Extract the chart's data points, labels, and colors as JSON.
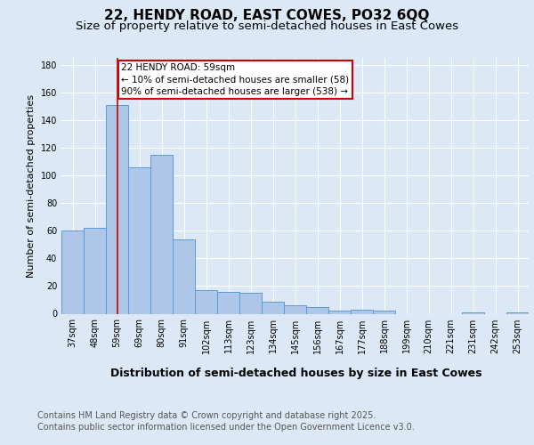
{
  "title_line1": "22, HENDY ROAD, EAST COWES, PO32 6QQ",
  "title_line2": "Size of property relative to semi-detached houses in East Cowes",
  "xlabel": "Distribution of semi-detached houses by size in East Cowes",
  "ylabel": "Number of semi-detached properties",
  "categories": [
    "37sqm",
    "48sqm",
    "59sqm",
    "69sqm",
    "80sqm",
    "91sqm",
    "102sqm",
    "113sqm",
    "123sqm",
    "134sqm",
    "145sqm",
    "156sqm",
    "167sqm",
    "177sqm",
    "188sqm",
    "199sqm",
    "210sqm",
    "221sqm",
    "231sqm",
    "242sqm",
    "253sqm"
  ],
  "values": [
    60,
    62,
    151,
    106,
    115,
    54,
    17,
    16,
    15,
    9,
    6,
    5,
    2,
    3,
    2,
    0,
    0,
    0,
    1,
    0,
    1
  ],
  "bar_color": "#aec6e8",
  "bar_edge_color": "#5b9bd5",
  "highlight_index": 2,
  "highlight_line_color": "#cc0000",
  "annotation_text": "22 HENDY ROAD: 59sqm\n← 10% of semi-detached houses are smaller (58)\n90% of semi-detached houses are larger (538) →",
  "annotation_box_color": "#ffffff",
  "annotation_box_edge": "#cc0000",
  "ylim": [
    0,
    185
  ],
  "yticks": [
    0,
    20,
    40,
    60,
    80,
    100,
    120,
    140,
    160,
    180
  ],
  "footer_line1": "Contains HM Land Registry data © Crown copyright and database right 2025.",
  "footer_line2": "Contains public sector information licensed under the Open Government Licence v3.0.",
  "background_color": "#dce8f5",
  "plot_bg_color": "#dce8f5",
  "grid_color": "#ffffff",
  "title1_fontsize": 11,
  "title2_fontsize": 9.5,
  "ylabel_fontsize": 8,
  "xlabel_fontsize": 9,
  "tick_fontsize": 7,
  "annotation_fontsize": 7.5,
  "footer_fontsize": 7
}
